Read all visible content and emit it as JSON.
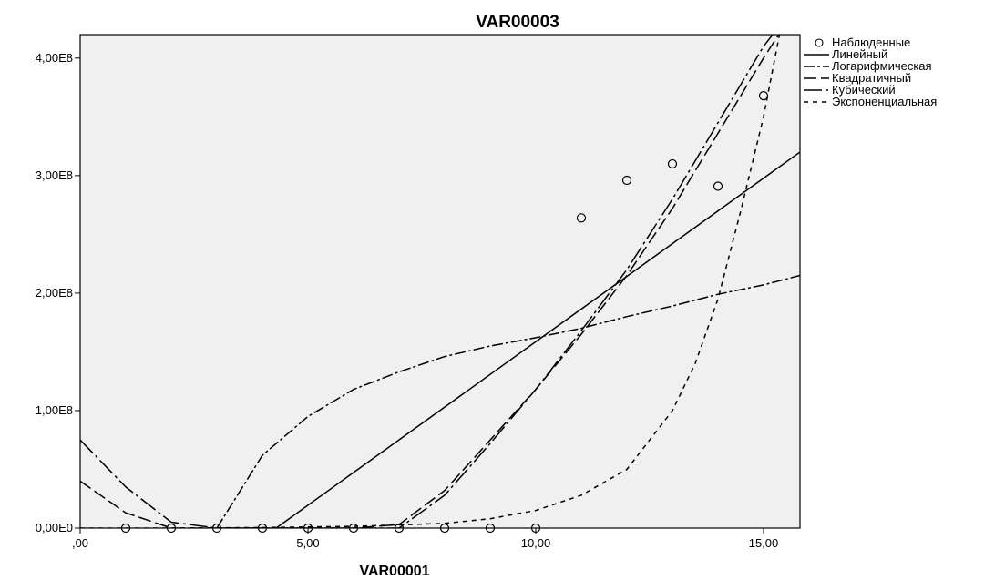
{
  "chart_data": {
    "type": "scatter",
    "title": "VAR00003",
    "xlabel": "VAR00001",
    "ylabel": "",
    "xlim": [
      0,
      15.8
    ],
    "ylim": [
      0,
      420000000
    ],
    "x_ticks": [
      {
        "value": 0,
        "label": ",00"
      },
      {
        "value": 5,
        "label": "5,00"
      },
      {
        "value": 10,
        "label": "10,00"
      },
      {
        "value": 15,
        "label": "15,00"
      }
    ],
    "y_ticks": [
      {
        "value": 0,
        "label": "0,00E0"
      },
      {
        "value": 100000000,
        "label": "1,00E8"
      },
      {
        "value": 200000000,
        "label": "2,00E8"
      },
      {
        "value": 300000000,
        "label": "3,00E8"
      },
      {
        "value": 400000000,
        "label": "4,00E8"
      }
    ],
    "grid": false,
    "legend_position": "right",
    "background": "#f0f0f0",
    "observed": {
      "name": "Наблюденные",
      "x": [
        1,
        2,
        3,
        4,
        5,
        6,
        7,
        8,
        9,
        10,
        11,
        12,
        13,
        14,
        15
      ],
      "y": [
        0,
        0,
        0,
        0,
        0,
        0,
        0,
        0,
        0,
        0,
        264000000,
        296000000,
        310000000,
        291000000,
        368000000
      ]
    },
    "series": [
      {
        "name": "Линейный",
        "dash": "",
        "x": [
          4.3,
          15.8
        ],
        "y": [
          0,
          320000000
        ]
      },
      {
        "name": "Логарифмическая",
        "dash": "12,3,3,3",
        "x": [
          3.0,
          4.0,
          5.0,
          6.0,
          7.0,
          8.0,
          9.0,
          10.0,
          11.0,
          12.0,
          13.0,
          14.0,
          15.0,
          15.8
        ],
        "y": [
          0,
          62000000,
          95000000,
          118000000,
          133000000,
          146000000,
          155000000,
          162000000,
          170000000,
          180000000,
          189000000,
          199000000,
          207000000,
          215000000
        ]
      },
      {
        "name": "Квадратичный",
        "dash": "14,5",
        "x": [
          0,
          1.0,
          2.0,
          3.0,
          4.0,
          5.0,
          6.0,
          7.0,
          8.0,
          9.0,
          10.0,
          11.0,
          12.0,
          13.0,
          14.0,
          15.0,
          15.5
        ],
        "y": [
          40000000,
          13000000,
          0,
          0,
          0,
          0,
          0,
          3000000,
          32000000,
          75000000,
          118000000,
          165000000,
          215000000,
          272000000,
          336000000,
          400000000,
          430000000
        ]
      },
      {
        "name": "Кубический",
        "dash": "20,4,3,4",
        "x": [
          0,
          1.0,
          2.0,
          3.0,
          4.0,
          5.0,
          6.0,
          7.0,
          8.0,
          9.0,
          10.0,
          11.0,
          12.0,
          13.0,
          14.0,
          15.0,
          15.4
        ],
        "y": [
          75000000,
          35000000,
          5000000,
          0,
          0,
          0,
          0,
          0,
          28000000,
          72000000,
          118000000,
          168000000,
          220000000,
          280000000,
          345000000,
          410000000,
          430000000
        ]
      },
      {
        "name": "Экспоненциальная",
        "dash": "5,5",
        "x": [
          0,
          2.0,
          4.0,
          6.0,
          8.0,
          9.0,
          10.0,
          11.0,
          12.0,
          13.0,
          13.5,
          14.0,
          14.5,
          15.0,
          15.2,
          15.4
        ],
        "y": [
          0,
          0,
          500000,
          1500000,
          4000000,
          8000000,
          15000000,
          28000000,
          50000000,
          100000000,
          140000000,
          195000000,
          270000000,
          350000000,
          390000000,
          430000000
        ]
      }
    ]
  }
}
